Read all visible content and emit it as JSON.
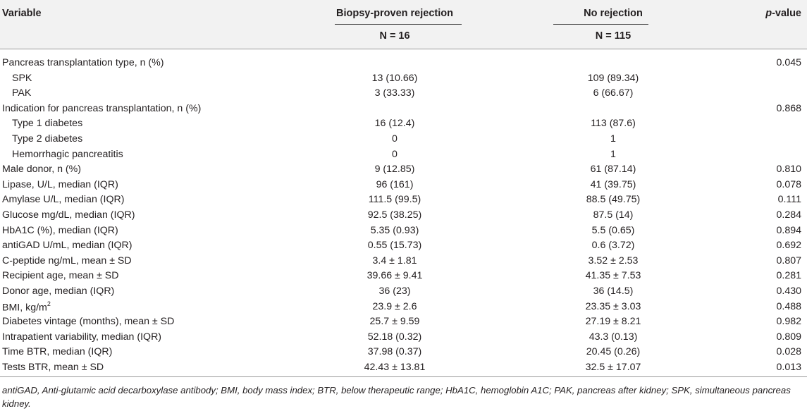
{
  "header": {
    "variable": "Variable",
    "group1": "Biopsy-proven rejection",
    "group2": "No rejection",
    "pvalue_prefix": "p",
    "pvalue_suffix": "-value",
    "n1": "N = 16",
    "n2": "N = 115"
  },
  "rows": [
    {
      "label": "Pancreas transplantation type, n (%)",
      "rej": "",
      "no": "",
      "p": "0.045",
      "indent": false
    },
    {
      "label": "SPK",
      "rej": "13 (10.66)",
      "no": "109 (89.34)",
      "p": "",
      "indent": true
    },
    {
      "label": "PAK",
      "rej": "3 (33.33)",
      "no": "6 (66.67)",
      "p": "",
      "indent": true
    },
    {
      "label": "Indication for pancreas transplantation, n (%)",
      "rej": "",
      "no": "",
      "p": "0.868",
      "indent": false
    },
    {
      "label": "Type 1 diabetes",
      "rej": "16 (12.4)",
      "no": "113 (87.6)",
      "p": "",
      "indent": true
    },
    {
      "label": "Type 2 diabetes",
      "rej": "0",
      "no": "1",
      "p": "",
      "indent": true
    },
    {
      "label": "Hemorrhagic pancreatitis",
      "rej": "0",
      "no": "1",
      "p": "",
      "indent": true
    },
    {
      "label": "Male donor, n (%)",
      "rej": "9 (12.85)",
      "no": "61 (87.14)",
      "p": "0.810",
      "indent": false
    },
    {
      "label": "Lipase, U/L, median (IQR)",
      "rej": "96 (161)",
      "no": "41 (39.75)",
      "p": "0.078",
      "indent": false
    },
    {
      "label": "Amylase U/L, median (IQR)",
      "rej": "111.5 (99.5)",
      "no": "88.5 (49.75)",
      "p": "0.111",
      "indent": false
    },
    {
      "label": "Glucose mg/dL, median (IQR)",
      "rej": "92.5 (38.25)",
      "no": "87.5 (14)",
      "p": "0.284",
      "indent": false
    },
    {
      "label": "HbA1C (%), median (IQR)",
      "rej": "5.35 (0.93)",
      "no": "5.5 (0.65)",
      "p": "0.894",
      "indent": false
    },
    {
      "label": "antiGAD U/mL, median (IQR)",
      "rej": "0.55 (15.73)",
      "no": "0.6 (3.72)",
      "p": "0.692",
      "indent": false
    },
    {
      "label": "C-peptide ng/mL, mean ± SD",
      "rej": "3.4 ± 1.81",
      "no": "3.52 ± 2.53",
      "p": "0.807",
      "indent": false
    },
    {
      "label": "Recipient age, mean ± SD",
      "rej": "39.66 ± 9.41",
      "no": "41.35 ± 7.53",
      "p": "0.281",
      "indent": false
    },
    {
      "label": "Donor age, median (IQR)",
      "rej": "36 (23)",
      "no": "36 (14.5)",
      "p": "0.430",
      "indent": false
    },
    {
      "label": "BMI, kg/m",
      "sup": "2",
      "rej": "23.9 ± 2.6",
      "no": "23.35 ± 3.03",
      "p": "0.488",
      "indent": false
    },
    {
      "label": "Diabetes vintage (months), mean ± SD",
      "rej": "25.7 ± 9.59",
      "no": "27.19 ± 8.21",
      "p": "0.982",
      "indent": false
    },
    {
      "label": "Intrapatient variability, median (IQR)",
      "rej": "52.18 (0.32)",
      "no": "43.3 (0.13)",
      "p": "0.809",
      "indent": false
    },
    {
      "label": "Time BTR, median (IQR)",
      "rej": "37.98 (0.37)",
      "no": "20.45 (0.26)",
      "p": "0.028",
      "indent": false
    },
    {
      "label": "Tests BTR, mean ± SD",
      "rej": "42.43 ± 13.81",
      "no": "32.5 ± 17.07",
      "p": "0.013",
      "indent": false
    }
  ],
  "footnote": "antiGAD, Anti-glutamic acid decarboxylase antibody; BMI, body mass index; BTR, below therapeutic range; HbA1C, hemoglobin A1C; PAK, pancreas after kidney; SPK, simultaneous pancreas kidney."
}
